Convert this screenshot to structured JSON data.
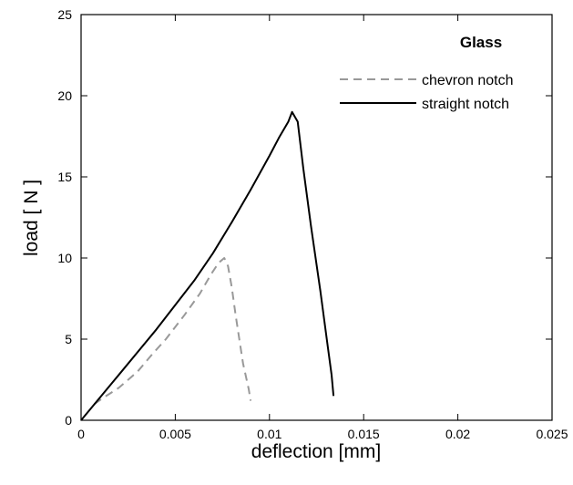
{
  "chart_data": {
    "type": "line",
    "xlabel": "deflection [mm]",
    "ylabel": "load [ N ]",
    "xlim": [
      0,
      0.025
    ],
    "ylim": [
      0,
      25
    ],
    "xticks": [
      0,
      0.005,
      0.01,
      0.015,
      0.02,
      0.025
    ],
    "yticks": [
      0,
      5,
      10,
      15,
      20,
      25
    ],
    "xtick_labels": [
      "0",
      "0.005",
      "0.01",
      "0.015",
      "0.02",
      "0.025"
    ],
    "ytick_labels": [
      "0",
      "5",
      "10",
      "15",
      "20",
      "25"
    ],
    "grid": false,
    "legend_title": "Glass",
    "legend_position": "top-right",
    "series": [
      {
        "name": "chevron notch",
        "style": "dashed",
        "color": "#999999",
        "points": [
          [
            0.0007,
            1.0
          ],
          [
            0.0012,
            1.4
          ],
          [
            0.002,
            2.0
          ],
          [
            0.003,
            3.0
          ],
          [
            0.0038,
            4.1
          ],
          [
            0.0045,
            5.0
          ],
          [
            0.0055,
            6.5
          ],
          [
            0.0063,
            7.8
          ],
          [
            0.0069,
            9.0
          ],
          [
            0.0073,
            9.7
          ],
          [
            0.0076,
            10.0
          ],
          [
            0.0078,
            9.5
          ],
          [
            0.008,
            8.2
          ],
          [
            0.0082,
            6.5
          ],
          [
            0.0084,
            5.0
          ],
          [
            0.0086,
            3.5
          ],
          [
            0.0089,
            1.9
          ],
          [
            0.009,
            1.2
          ]
        ]
      },
      {
        "name": "straight notch",
        "style": "solid",
        "color": "#000000",
        "points": [
          [
            0.0,
            0.0
          ],
          [
            0.002,
            2.8
          ],
          [
            0.004,
            5.6
          ],
          [
            0.006,
            8.6
          ],
          [
            0.007,
            10.3
          ],
          [
            0.008,
            12.2
          ],
          [
            0.009,
            14.2
          ],
          [
            0.01,
            16.3
          ],
          [
            0.0105,
            17.4
          ],
          [
            0.011,
            18.4
          ],
          [
            0.0112,
            19.0
          ],
          [
            0.0115,
            18.4
          ],
          [
            0.0118,
            15.5
          ],
          [
            0.0122,
            12.0
          ],
          [
            0.0127,
            8.0
          ],
          [
            0.0131,
            4.5
          ],
          [
            0.0133,
            2.8
          ],
          [
            0.0134,
            1.5
          ]
        ]
      }
    ]
  }
}
